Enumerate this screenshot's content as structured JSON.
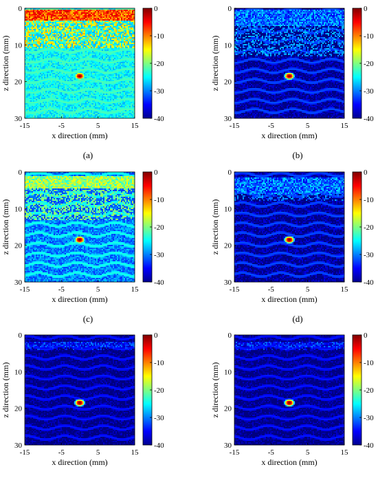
{
  "panels": [
    {
      "id": "a",
      "caption": "(a)",
      "background_level": -25,
      "surface_level": -3,
      "surface_band_z": [
        0.5,
        3.5
      ],
      "speckle_band_z": [
        3.5,
        11
      ],
      "speckle_level": -18,
      "texture_level": -28,
      "target": {
        "x": 0,
        "z": 18.5,
        "peak": 0
      }
    },
    {
      "id": "b",
      "caption": "(b)",
      "background_level": -39,
      "surface_level": -26,
      "surface_band_z": [
        0.3,
        5
      ],
      "speckle_band_z": [
        5,
        13
      ],
      "speckle_level": -33,
      "texture_level": -38,
      "target": {
        "x": 0,
        "z": 18.5,
        "peak": 0
      }
    },
    {
      "id": "c",
      "caption": "(c)",
      "background_level": -30,
      "surface_level": -14,
      "surface_band_z": [
        1,
        4.5
      ],
      "speckle_band_z": [
        4.5,
        13
      ],
      "speckle_level": -24,
      "texture_level": -30,
      "target": {
        "x": 0,
        "z": 18.5,
        "peak": 0
      }
    },
    {
      "id": "d",
      "caption": "(d)",
      "background_level": -39,
      "surface_level": -26,
      "surface_band_z": [
        1.5,
        6
      ],
      "speckle_band_z": [
        6,
        8
      ],
      "speckle_level": -34,
      "texture_level": -38,
      "target": {
        "x": 0,
        "z": 18.5,
        "peak": 0
      }
    },
    {
      "id": "e",
      "caption": "(e)",
      "background_level": -40,
      "surface_level": -30,
      "surface_band_z": [
        2,
        3.5
      ],
      "speckle_band_z": [
        3.5,
        4
      ],
      "speckle_level": -38,
      "texture_level": -40,
      "target": {
        "x": 0,
        "z": 18.5,
        "peak": 0
      }
    },
    {
      "id": "f",
      "caption": "(f)",
      "background_level": -40,
      "surface_level": -30,
      "surface_band_z": [
        2,
        3.5
      ],
      "speckle_band_z": [
        3.5,
        4
      ],
      "speckle_level": -38,
      "texture_level": -40,
      "target": {
        "x": 0,
        "z": 18.5,
        "peak": 0
      }
    }
  ],
  "chart_data": {
    "type": "heatmap",
    "xlabel": "x direction (mm)",
    "ylabel": "z direction (mm)",
    "xlim": [
      -15,
      15
    ],
    "ylim": [
      30,
      0
    ],
    "x_ticks": [
      "-15",
      "-5",
      "5",
      "15"
    ],
    "y_ticks": [
      "0",
      "10",
      "20",
      "30"
    ],
    "colorbar": {
      "range": [
        -40,
        0
      ],
      "ticks": [
        "0",
        "-10",
        "-20",
        "-30",
        "-40"
      ],
      "colormap": "jet"
    }
  }
}
